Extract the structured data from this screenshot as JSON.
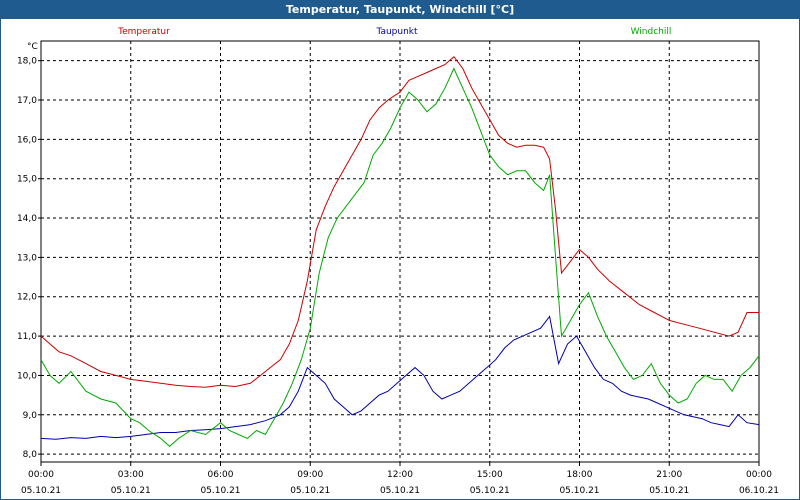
{
  "window": {
    "title": "Temperatur, Taupunkt, Windchill [°C]"
  },
  "chart_data": {
    "type": "line",
    "title": "Temperatur, Taupunkt, Windchill [°C]",
    "ylabel": "°C",
    "xlabel": "",
    "ylim": [
      7.8,
      18.5
    ],
    "xlim": [
      0,
      24
    ],
    "grid": true,
    "legend_position": "top",
    "y_ticks": [
      "8,0",
      "9,0",
      "10,0",
      "11,0",
      "12,0",
      "13,0",
      "14,0",
      "15,0",
      "16,0",
      "17,0",
      "18,0"
    ],
    "x_ticks": [
      {
        "time": "00:00",
        "date": "05.10.21"
      },
      {
        "time": "03:00",
        "date": "05.10.21"
      },
      {
        "time": "06:00",
        "date": "05.10.21"
      },
      {
        "time": "09:00",
        "date": "05.10.21"
      },
      {
        "time": "12:00",
        "date": "05.10.21"
      },
      {
        "time": "15:00",
        "date": "05.10.21"
      },
      {
        "time": "18:00",
        "date": "05.10.21"
      },
      {
        "time": "21:00",
        "date": "05.10.21"
      },
      {
        "time": "00:00",
        "date": "06.10.21"
      }
    ],
    "series": [
      {
        "name": "Temperatur",
        "color": "#cc0000",
        "x": [
          0,
          0.3,
          0.6,
          1,
          1.5,
          2,
          2.5,
          3,
          3.5,
          4,
          4.5,
          5,
          5.5,
          6,
          6.5,
          7,
          7.5,
          8,
          8.3,
          8.6,
          8.9,
          9.2,
          9.5,
          9.8,
          10.1,
          10.4,
          10.7,
          11,
          11.3,
          11.6,
          12,
          12.3,
          12.6,
          12.9,
          13.2,
          13.5,
          13.8,
          14.1,
          14.4,
          14.7,
          15,
          15.3,
          15.6,
          15.9,
          16.2,
          16.5,
          16.8,
          17,
          17.2,
          17.4,
          17.7,
          18,
          18.3,
          18.6,
          19,
          19.5,
          20,
          20.5,
          21,
          21.5,
          22,
          22.5,
          23,
          23.3,
          23.6,
          24
        ],
        "values": [
          11.0,
          10.8,
          10.6,
          10.5,
          10.3,
          10.1,
          10.0,
          9.9,
          9.85,
          9.8,
          9.75,
          9.72,
          9.7,
          9.75,
          9.72,
          9.8,
          10.1,
          10.4,
          10.8,
          11.4,
          12.4,
          13.7,
          14.3,
          14.8,
          15.2,
          15.6,
          16.0,
          16.5,
          16.8,
          17.0,
          17.2,
          17.5,
          17.6,
          17.7,
          17.8,
          17.9,
          18.1,
          17.8,
          17.3,
          16.9,
          16.5,
          16.1,
          15.9,
          15.8,
          15.85,
          15.85,
          15.8,
          15.5,
          14.2,
          12.6,
          12.9,
          13.2,
          13.0,
          12.7,
          12.4,
          12.1,
          11.8,
          11.6,
          11.4,
          11.3,
          11.2,
          11.1,
          11.0,
          11.1,
          11.6,
          11.6
        ]
      },
      {
        "name": "Taupunkt",
        "color": "#0000aa",
        "x": [
          0,
          0.5,
          1,
          1.5,
          2,
          2.5,
          3,
          3.5,
          4,
          4.5,
          5,
          5.5,
          6,
          6.5,
          7,
          7.5,
          8,
          8.3,
          8.6,
          8.9,
          9.2,
          9.5,
          9.8,
          10.1,
          10.4,
          10.7,
          11,
          11.3,
          11.6,
          11.9,
          12.2,
          12.5,
          12.8,
          13.1,
          13.4,
          13.7,
          14,
          14.3,
          14.6,
          14.9,
          15.2,
          15.5,
          15.8,
          16.1,
          16.4,
          16.7,
          17,
          17.3,
          17.6,
          17.9,
          18.2,
          18.5,
          18.8,
          19.1,
          19.4,
          19.7,
          20,
          20.3,
          20.6,
          20.9,
          21.2,
          21.5,
          21.8,
          22.1,
          22.4,
          22.7,
          23,
          23.3,
          23.6,
          24
        ],
        "values": [
          8.4,
          8.38,
          8.42,
          8.4,
          8.45,
          8.42,
          8.45,
          8.5,
          8.55,
          8.55,
          8.6,
          8.62,
          8.65,
          8.7,
          8.75,
          8.85,
          9.0,
          9.2,
          9.6,
          10.2,
          10.0,
          9.8,
          9.4,
          9.2,
          9.0,
          9.1,
          9.3,
          9.5,
          9.6,
          9.8,
          10.0,
          10.2,
          10.0,
          9.6,
          9.4,
          9.5,
          9.6,
          9.8,
          10.0,
          10.2,
          10.4,
          10.7,
          10.9,
          11.0,
          11.1,
          11.2,
          11.5,
          10.3,
          10.8,
          11.0,
          10.6,
          10.2,
          9.9,
          9.8,
          9.6,
          9.5,
          9.45,
          9.4,
          9.3,
          9.2,
          9.1,
          9.0,
          8.95,
          8.9,
          8.8,
          8.75,
          8.7,
          9.0,
          8.8,
          8.75
        ]
      },
      {
        "name": "Windchill",
        "color": "#00aa00",
        "x": [
          0,
          0.3,
          0.6,
          1,
          1.5,
          2,
          2.5,
          3,
          3.3,
          3.6,
          4,
          4.3,
          4.6,
          5,
          5.5,
          6,
          6.3,
          6.6,
          6.9,
          7.2,
          7.5,
          7.8,
          8.1,
          8.4,
          8.7,
          9,
          9.3,
          9.6,
          9.9,
          10.2,
          10.5,
          10.8,
          11.1,
          11.4,
          11.7,
          12,
          12.3,
          12.6,
          12.9,
          13.2,
          13.5,
          13.8,
          14.1,
          14.4,
          14.7,
          15,
          15.3,
          15.6,
          15.9,
          16.2,
          16.5,
          16.8,
          17,
          17.2,
          17.4,
          17.7,
          18,
          18.3,
          18.6,
          18.9,
          19.2,
          19.5,
          19.8,
          20.1,
          20.4,
          20.7,
          21,
          21.3,
          21.6,
          21.9,
          22.2,
          22.5,
          22.8,
          23.1,
          23.4,
          23.7,
          24
        ],
        "values": [
          10.4,
          10.0,
          9.8,
          10.1,
          9.6,
          9.4,
          9.3,
          8.9,
          8.8,
          8.6,
          8.4,
          8.2,
          8.4,
          8.6,
          8.5,
          8.8,
          8.6,
          8.5,
          8.4,
          8.6,
          8.5,
          8.9,
          9.3,
          9.8,
          10.4,
          11.2,
          12.6,
          13.5,
          14.0,
          14.3,
          14.6,
          14.9,
          15.6,
          15.9,
          16.3,
          16.8,
          17.2,
          17.0,
          16.7,
          16.9,
          17.3,
          17.8,
          17.3,
          16.8,
          16.2,
          15.6,
          15.3,
          15.1,
          15.2,
          15.2,
          14.9,
          14.7,
          15.1,
          13.0,
          11.0,
          11.4,
          11.8,
          12.1,
          11.5,
          11.0,
          10.6,
          10.2,
          9.9,
          10.0,
          10.3,
          9.8,
          9.5,
          9.3,
          9.4,
          9.8,
          10.0,
          9.9,
          9.9,
          9.6,
          10.0,
          10.2,
          10.5
        ]
      }
    ]
  }
}
